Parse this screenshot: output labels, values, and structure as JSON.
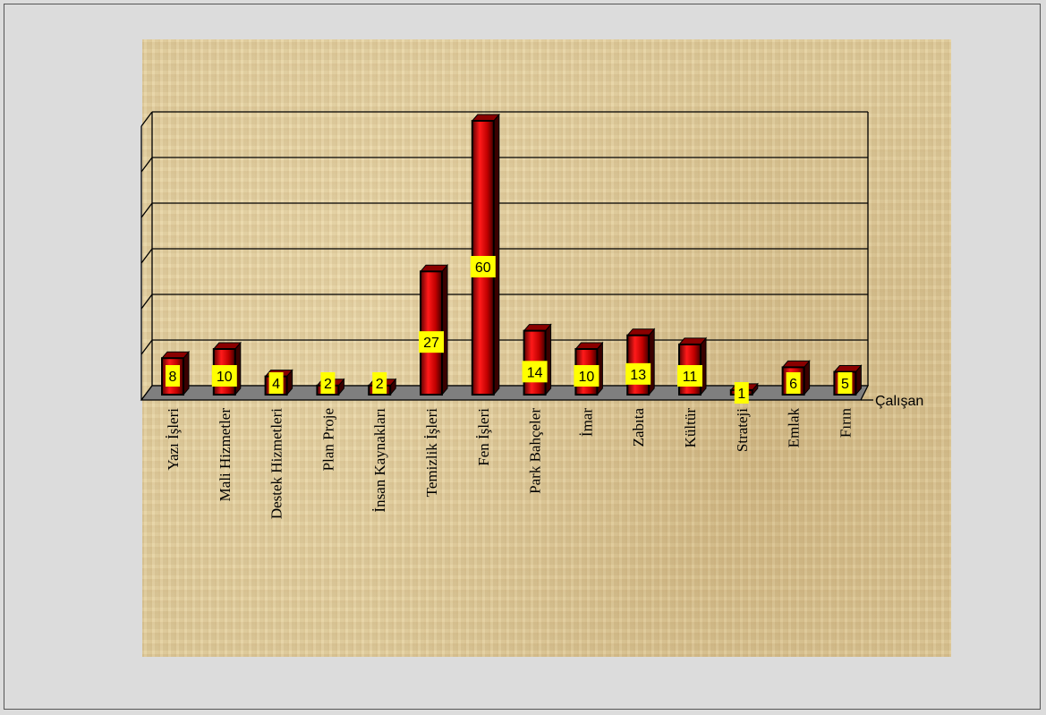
{
  "chart_data": {
    "type": "bar",
    "style": "3d",
    "categories": [
      "Yazı İşleri",
      "Mali Hizmetler",
      "Destek Hizmetleri",
      "Plan Proje",
      "İnsan Kaynakları",
      "Temizlik İşleri",
      "Fen İşleri",
      "Park Bahçeler",
      "İmar",
      "Zabıta",
      "Kültür",
      "Strateji",
      "Emlak",
      "Fırın"
    ],
    "series": [
      {
        "name": "Çalışan",
        "values": [
          8,
          10,
          4,
          2,
          2,
          27,
          60,
          14,
          10,
          13,
          11,
          1,
          6,
          5
        ]
      }
    ],
    "ylim": [
      0,
      60
    ],
    "grid": true,
    "legend": "right",
    "colors": {
      "bar_front": "#e60000",
      "bar_dark": "#3a0000",
      "label_bg": "#ffff00",
      "floor": "#7f7f7f"
    }
  }
}
